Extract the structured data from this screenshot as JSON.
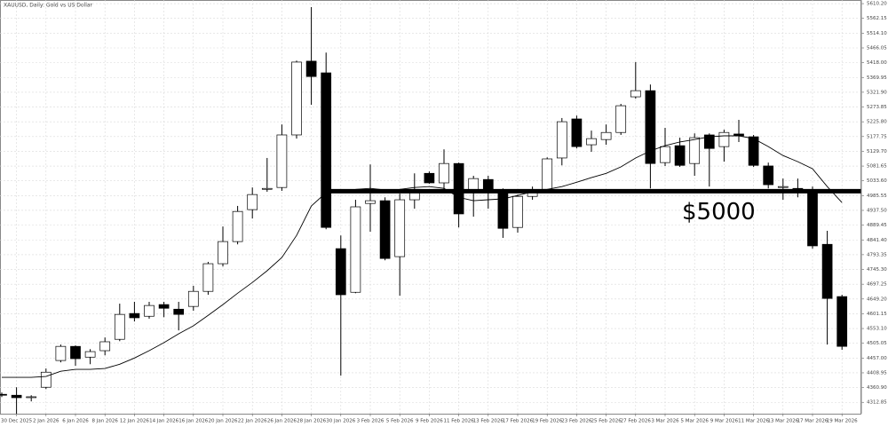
{
  "chart_data": {
    "type": "candlestick",
    "title": "XAUUSD, Daily: Gold vs US Dollar",
    "categories": [
      null,
      "30 Dec 2025",
      null,
      "2 Jan 2026",
      null,
      "6 Jan 2026",
      null,
      "8 Jan 2026",
      null,
      "12 Jan 2026",
      null,
      "14 Jan 2026",
      null,
      "16 Jan 2026",
      null,
      "20 Jan 2026",
      null,
      "22 Jan 2026",
      null,
      "26 Jan 2026",
      null,
      "28 Jan 2026",
      null,
      "30 Jan 2026",
      null,
      "3 Feb 2026",
      null,
      "5 Feb 2026",
      null,
      "9 Feb 2026",
      null,
      "11 Feb 2026",
      null,
      "13 Feb 2026",
      null,
      "17 Feb 2026",
      null,
      "19 Feb 2026",
      null,
      "23 Feb 2026",
      null,
      "25 Feb 2026",
      null,
      "27 Feb 2026",
      null,
      "3 Mar 2026",
      null,
      "5 Mar 2026",
      null,
      "9 Mar 2026",
      null,
      "11 Mar 2026",
      null,
      "13 Mar 2026",
      null,
      "17 Mar 2026",
      null,
      "19 Mar 2026"
    ],
    "open": [
      4339,
      4336,
      4330,
      4362,
      4449,
      4495,
      4460,
      4481,
      4518,
      4602,
      4593,
      4631,
      4616,
      4625,
      4674,
      4764,
      4836,
      4940,
      5006,
      5012,
      5183,
      5423,
      5385,
      4813,
      4671,
      4960,
      4969,
      4787,
      4972,
      5058,
      5027,
      5090,
      5001,
      5038,
      4995,
      4882,
      4983,
      5006,
      5108,
      5235,
      5151,
      5168,
      5191,
      5307,
      5327,
      5093,
      5148,
      5090,
      5183,
      5145,
      5186,
      5177,
      5082,
      5012,
      5009,
      5004,
      4827,
      4657
    ],
    "high": [
      4345,
      4362,
      4336,
      4423,
      4501,
      4498,
      4486,
      4524,
      4634,
      4640,
      4640,
      4640,
      4640,
      4692,
      4770,
      4885,
      4952,
      5012,
      5108,
      5217,
      5425,
      5599,
      5451,
      4856,
      4972,
      5087,
      4980,
      4992,
      5058,
      5064,
      5136,
      5093,
      5050,
      5050,
      5009,
      4989,
      5015,
      5110,
      5238,
      5246,
      5197,
      5217,
      5284,
      5420,
      5347,
      5206,
      5174,
      5188,
      5188,
      5200,
      5232,
      5183,
      5093,
      5041,
      5041,
      5015,
      4871,
      4663
    ],
    "low": [
      4330,
      4276,
      4316,
      4356,
      4443,
      4432,
      4437,
      4466,
      4512,
      4576,
      4585,
      4590,
      4547,
      4611,
      4663,
      4755,
      4827,
      4911,
      4998,
      5001,
      5171,
      5281,
      4876,
      4400,
      4668,
      4868,
      4775,
      4660,
      4943,
      5024,
      5001,
      4882,
      4917,
      4943,
      4848,
      4865,
      4972,
      5004,
      5084,
      5139,
      5128,
      5151,
      5183,
      5301,
      5009,
      5082,
      5079,
      5050,
      5015,
      5096,
      5160,
      5079,
      5009,
      4972,
      4980,
      4813,
      4501,
      4484
    ],
    "close": [
      4336,
      4328,
      4331,
      4411,
      4495,
      4455,
      4478,
      4510,
      4599,
      4588,
      4628,
      4619,
      4599,
      4674,
      4764,
      4836,
      4934,
      4989,
      5009,
      5183,
      5420,
      5373,
      4882,
      4663,
      4949,
      4969,
      4781,
      4972,
      5001,
      5027,
      5090,
      4926,
      5041,
      5004,
      4879,
      4983,
      5004,
      5105,
      5226,
      5145,
      5171,
      5191,
      5278,
      5327,
      5090,
      5145,
      5084,
      5174,
      5139,
      5191,
      5180,
      5084,
      5021,
      5015,
      5006,
      4822,
      4651,
      4495
    ],
    "up_color": "#ffffff",
    "down_color": "#000000",
    "moving_average": {
      "color": "#000000",
      "values": [
        4394,
        4394,
        4394,
        4397,
        4414,
        4420,
        4420,
        4423,
        4437,
        4457,
        4481,
        4507,
        4536,
        4562,
        4596,
        4631,
        4668,
        4703,
        4741,
        4784,
        4856,
        4952,
        4995,
        5004,
        5006,
        5009,
        5004,
        5006,
        5012,
        5015,
        5009,
        4980,
        4969,
        4972,
        4975,
        4986,
        4998,
        5006,
        5015,
        5029,
        5044,
        5058,
        5079,
        5108,
        5131,
        5148,
        5160,
        5168,
        5177,
        5180,
        5180,
        5171,
        5145,
        5116,
        5096,
        5073,
        5015,
        4963
      ]
    },
    "hline": {
      "value": 5000,
      "label": "$5000"
    },
    "ylim": [
      4276,
      5622
    ],
    "yticks": [
      {
        "value": 5610.2,
        "label": "5610.20"
      },
      {
        "value": 5562.15,
        "label": "5562.15"
      },
      {
        "value": 5514.1,
        "label": "5514.10"
      },
      {
        "value": 5466.05,
        "label": "5466.05"
      },
      {
        "value": 5418,
        "label": "5418.00"
      },
      {
        "value": 5369.95,
        "label": "5369.95"
      },
      {
        "value": 5321.9,
        "label": "5321.90"
      },
      {
        "value": 5273.85,
        "label": "5273.85"
      },
      {
        "value": 5225.8,
        "label": "5225.80"
      },
      {
        "value": 5177.75,
        "label": "5177.75"
      },
      {
        "value": 5129.7,
        "label": "5129.70"
      },
      {
        "value": 5081.65,
        "label": "5081.65"
      },
      {
        "value": 5033.6,
        "label": "5033.60"
      },
      {
        "value": 4985.55,
        "label": "4985.55"
      },
      {
        "value": 4937.5,
        "label": "4937.50"
      },
      {
        "value": 4889.45,
        "label": "4889.45"
      },
      {
        "value": 4841.4,
        "label": "4841.40"
      },
      {
        "value": 4793.35,
        "label": "4793.35"
      },
      {
        "value": 4745.3,
        "label": "4745.30"
      },
      {
        "value": 4697.25,
        "label": "4697.25"
      },
      {
        "value": 4649.2,
        "label": "4649.20"
      },
      {
        "value": 4601.15,
        "label": "4601.15"
      },
      {
        "value": 4553.1,
        "label": "4553.10"
      },
      {
        "value": 4505.05,
        "label": "4505.05"
      },
      {
        "value": 4457,
        "label": "4457.00"
      },
      {
        "value": 4408.95,
        "label": "4408.95"
      },
      {
        "value": 4360.9,
        "label": "4360.90"
      },
      {
        "value": 4312.85,
        "label": "4312.85"
      }
    ],
    "grid": true
  }
}
